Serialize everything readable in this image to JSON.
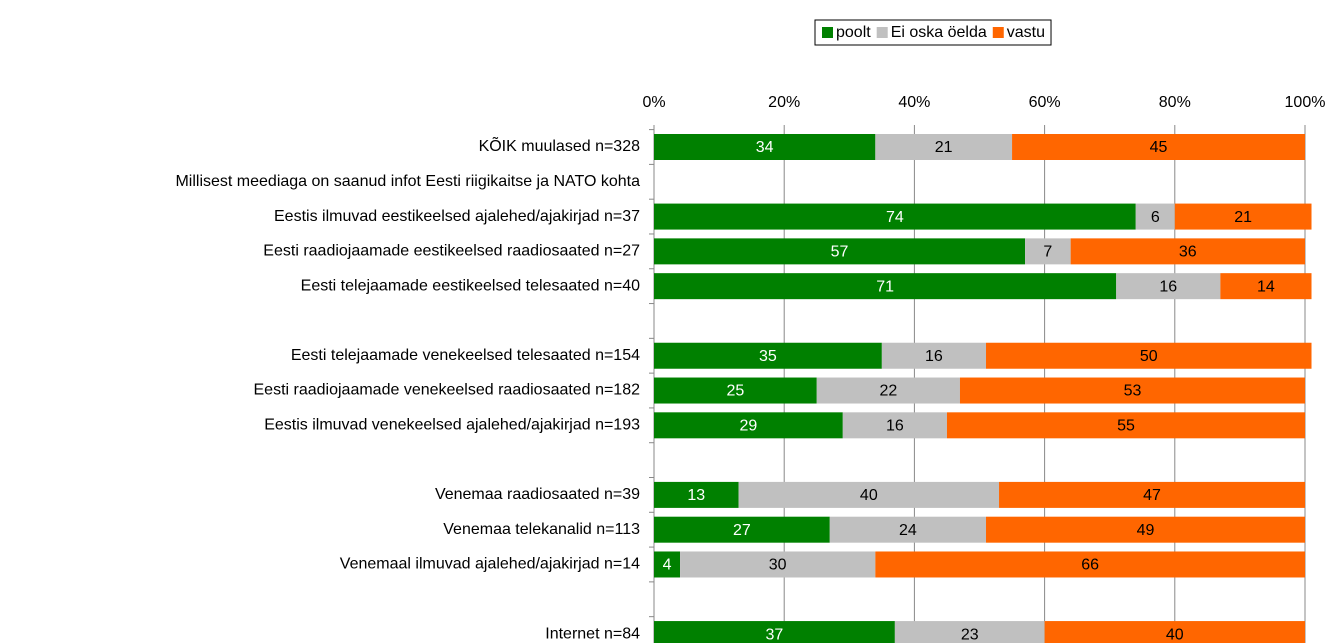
{
  "chart_data": {
    "type": "stacked-bar-horizontal",
    "categories": [
      "KÕIK muulased n=328",
      "Millisest meediaga on saanud infot Eesti riigikaitse ja NATO kohta",
      "Eestis ilmuvad eestikeelsed ajalehed/ajakirjad n=37",
      "Eesti raadiojaamade eestikeelsed raadiosaated n=27",
      "Eesti telejaamade eestikeelsed telesaated n=40",
      null,
      "Eesti telejaamade venekeelsed telesaated n=154",
      "Eesti raadiojaamade venekeelsed raadiosaated n=182",
      "Eestis ilmuvad venekeelsed ajalehed/ajakirjad n=193",
      null,
      "Venemaa raadiosaated n=39",
      "Venemaa telekanalid n=113",
      "Venemaal ilmuvad ajalehed/ajakirjad n=14",
      null,
      "Internet n=84"
    ],
    "series": [
      {
        "name": "poolt",
        "color": "#008000",
        "values": [
          34,
          null,
          74,
          57,
          71,
          null,
          35,
          25,
          29,
          null,
          13,
          27,
          4,
          null,
          37
        ]
      },
      {
        "name": "Ei oska öelda",
        "color": "#c0c0c0",
        "values": [
          21,
          null,
          6,
          7,
          16,
          null,
          16,
          22,
          16,
          null,
          40,
          24,
          30,
          null,
          23
        ]
      },
      {
        "name": "vastu",
        "color": "#ff6600",
        "values": [
          45,
          null,
          21,
          36,
          14,
          null,
          50,
          53,
          55,
          null,
          47,
          49,
          66,
          null,
          40
        ]
      }
    ],
    "xlim": [
      0,
      100
    ],
    "xticks": [
      {
        "value": 0,
        "label": "0%"
      },
      {
        "value": 20,
        "label": "20%"
      },
      {
        "value": 40,
        "label": "40%"
      },
      {
        "value": 60,
        "label": "60%"
      },
      {
        "value": 80,
        "label": "80%"
      },
      {
        "value": 100,
        "label": "100%"
      }
    ],
    "grid": true,
    "legend": "top"
  }
}
